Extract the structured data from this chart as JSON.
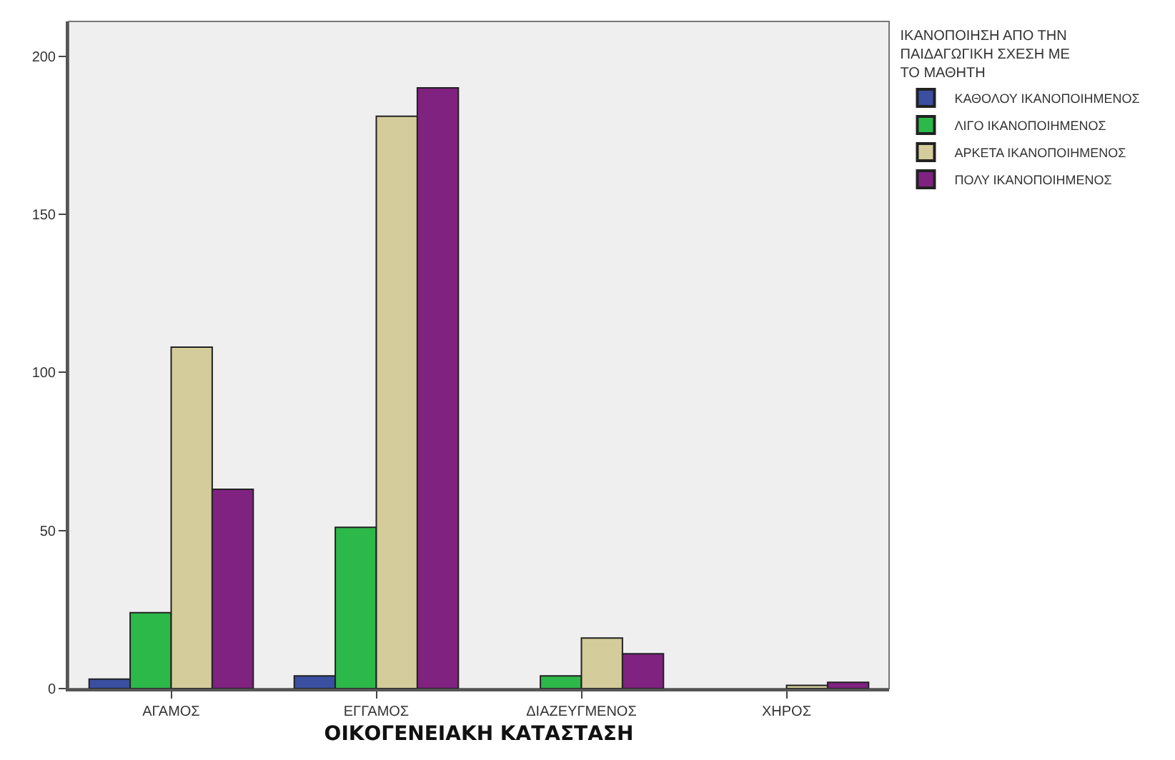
{
  "chart_data": {
    "type": "bar",
    "xlabel": "ΟΙΚΟΓΕΝΕΙΑΚΗ ΚΑΤΑΣΤΑΣΗ",
    "legend_title": "ΙΚΑΝΟΠΟΙΗΣΗ ΑΠΟ ΤΗΝ ΠΑΙΔΑΓΩΓΙΚΗ ΣΧΕΣΗ ΜΕ ΤΟ ΜΑΘΗΤΗ",
    "categories": [
      "ΑΓΑΜΟΣ",
      "ΕΓΓΑΜΟΣ",
      "ΔΙΑΖΕΥΓΜΕΝΟΣ",
      "ΧΗΡΟΣ"
    ],
    "series": [
      {
        "name": "ΚΑΘΟΛΟΥ ΙΚΑΝΟΠΟΙΗΜΕΝΟΣ",
        "color": "#3a4fa0",
        "values": [
          3,
          4,
          null,
          null
        ]
      },
      {
        "name": "ΛΙΓΟ ΙΚΑΝΟΠΟΙΗΜΕΝΟΣ",
        "color": "#2db84a",
        "values": [
          24,
          51,
          4,
          null
        ]
      },
      {
        "name": "ΑΡΚΕΤΑ ΙΚΑΝΟΠΟΙΗΜΕΝΟΣ",
        "color": "#d4cc9a",
        "values": [
          108,
          181,
          16,
          1
        ]
      },
      {
        "name": "ΠΟΛΥ ΙΚΑΝΟΠΟΙΗΜΕΝΟΣ",
        "color": "#7f2280",
        "values": [
          63,
          190,
          11,
          2
        ]
      }
    ],
    "ylim": [
      0,
      211
    ],
    "yticks": [
      0,
      50,
      100,
      150,
      200
    ],
    "legend": "top right"
  }
}
